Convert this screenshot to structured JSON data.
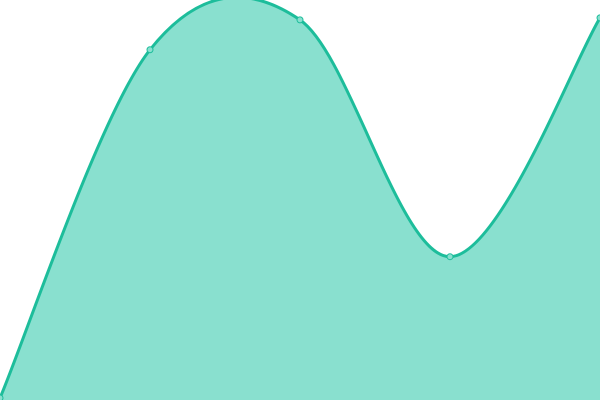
{
  "chart_data": {
    "type": "area",
    "x": [
      0,
      1,
      2,
      3,
      4
    ],
    "series": [
      {
        "values": [
          0,
          87.5,
          95,
          35.5,
          95.5
        ]
      }
    ],
    "ylim": [
      0,
      100
    ],
    "xlim": [
      0,
      4
    ],
    "grid": false,
    "axes": false,
    "curve": "smooth",
    "colors": {
      "line": "#1dbd9b",
      "fill": "#89e0cf",
      "point_fill": "#89e0cf"
    }
  }
}
